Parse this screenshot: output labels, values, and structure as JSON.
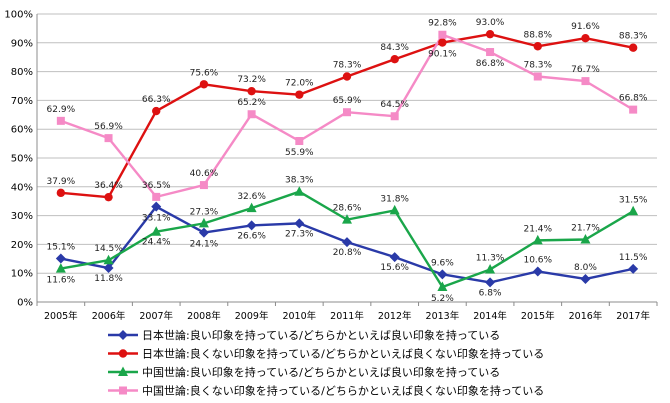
{
  "chart_data": {
    "type": "line",
    "categories": [
      "2005年",
      "2006年",
      "2007年",
      "2008年",
      "2009年",
      "2010年",
      "2011年",
      "2012年",
      "2013年",
      "2014年",
      "2015年",
      "2016年",
      "2017年"
    ],
    "ylim": [
      0,
      100
    ],
    "y_ticks": [
      "0%",
      "10%",
      "20%",
      "30%",
      "40%",
      "50%",
      "60%",
      "70%",
      "80%",
      "90%",
      "100%"
    ],
    "grid": true,
    "legend_position": "bottom",
    "series": [
      {
        "name": "日本世論:良い印象を持っている/どちらかといえば良い印象を持っている",
        "color": "#2a3aa8",
        "marker": "diamond",
        "values": [
          15.1,
          11.8,
          33.1,
          24.1,
          26.6,
          27.3,
          20.8,
          15.6,
          9.6,
          6.8,
          10.6,
          8.0,
          11.5
        ],
        "labels": [
          "15.1%",
          "11.8%",
          "33.1%",
          "24.1%",
          "26.6%",
          "27.3%",
          "20.8%",
          "15.6%",
          "9.6%",
          "6.8%",
          "10.6%",
          "8.0%",
          "11.5%"
        ]
      },
      {
        "name": "日本世論:良くない印象を持っている/どちらかといえば良くない印象を持っている",
        "color": "#dd1111",
        "marker": "circle",
        "values": [
          37.9,
          36.4,
          66.3,
          75.6,
          73.2,
          72.0,
          78.3,
          84.3,
          90.1,
          93.0,
          88.8,
          91.6,
          88.3
        ],
        "labels": [
          "37.9%",
          "36.4%",
          "66.3%",
          "75.6%",
          "73.2%",
          "72.0%",
          "78.3%",
          "84.3%",
          "90.1%",
          "93.0%",
          "88.8%",
          "91.6%",
          "88.3%"
        ]
      },
      {
        "name": "中国世論:良い印象を持っている/どちらかといえば良い印象を持っている",
        "color": "#1aa64a",
        "marker": "triangle",
        "values": [
          11.6,
          14.5,
          24.4,
          27.3,
          32.6,
          38.3,
          28.6,
          31.8,
          5.2,
          11.3,
          21.4,
          21.7,
          31.5
        ],
        "labels": [
          "11.6%",
          "14.5%",
          "24.4%",
          "27.3%",
          "32.6%",
          "38.3%",
          "28.6%",
          "31.8%",
          "5.2%",
          "11.3%",
          "21.4%",
          "21.7%",
          "31.5%"
        ]
      },
      {
        "name": "中国世論:良くない印象を持っている/どちらかといえば良くない印象を持っている",
        "color": "#f58ac6",
        "marker": "square",
        "values": [
          62.9,
          56.9,
          36.5,
          40.6,
          65.2,
          55.9,
          65.9,
          64.5,
          92.8,
          86.8,
          78.3,
          76.7,
          66.8
        ],
        "labels": [
          "62.9%",
          "56.9%",
          "36.5%",
          "40.6%",
          "65.2%",
          "55.9%",
          "65.9%",
          "64.5%",
          "92.8%",
          "86.8%",
          "78.3%",
          "76.7%",
          "66.8%"
        ]
      }
    ]
  }
}
